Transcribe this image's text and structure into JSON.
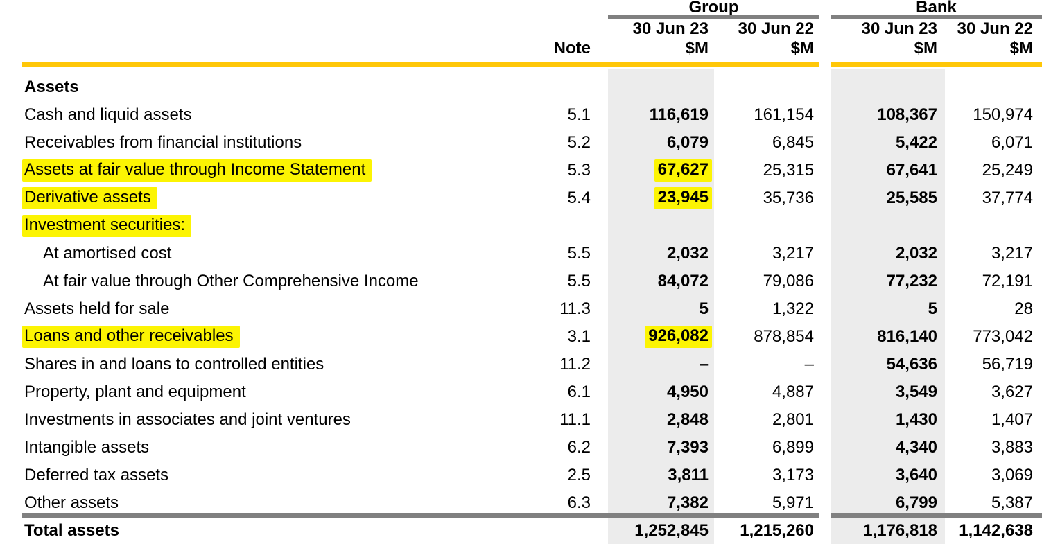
{
  "table": {
    "column_groups": [
      {
        "label": "Group"
      },
      {
        "label": "Bank"
      }
    ],
    "note_header": "Note",
    "date_headers": [
      "30 Jun 23",
      "30 Jun 22"
    ],
    "unit": "$M",
    "rows": [
      {
        "label": "Assets",
        "note": "",
        "g23": "",
        "g22": "",
        "b23": "",
        "b22": "",
        "style": "section"
      },
      {
        "label": "Cash and liquid assets",
        "note": "5.1",
        "g23": "116,619",
        "g22": "161,154",
        "b23": "108,367",
        "b22": "150,974",
        "style": ""
      },
      {
        "label": "Receivables from financial institutions",
        "note": "5.2",
        "g23": "6,079",
        "g22": "6,845",
        "b23": "5,422",
        "b22": "6,071",
        "style": ""
      },
      {
        "label": "Assets at fair value through Income Statement",
        "note": "5.3",
        "g23": "67,627",
        "g22": "25,315",
        "b23": "67,641",
        "b22": "25,249",
        "style": "hl hlv"
      },
      {
        "label": "Derivative assets",
        "note": "5.4",
        "g23": "23,945",
        "g22": "35,736",
        "b23": "25,585",
        "b22": "37,774",
        "style": "hl hlv"
      },
      {
        "label": "Investment securities:",
        "note": "",
        "g23": "",
        "g22": "",
        "b23": "",
        "b22": "",
        "style": "hl"
      },
      {
        "label": "At amortised cost",
        "note": "5.5",
        "g23": "2,032",
        "g22": "3,217",
        "b23": "2,032",
        "b22": "3,217",
        "style": "indent"
      },
      {
        "label": "At fair value through Other Comprehensive Income",
        "note": "5.5",
        "g23": "84,072",
        "g22": "79,086",
        "b23": "77,232",
        "b22": "72,191",
        "style": "indent"
      },
      {
        "label": "Assets held for sale",
        "note": "11.3",
        "g23": "5",
        "g22": "1,322",
        "b23": "5",
        "b22": "28",
        "style": ""
      },
      {
        "label": "Loans and other receivables",
        "note": "3.1",
        "g23": "926,082",
        "g22": "878,854",
        "b23": "816,140",
        "b22": "773,042",
        "style": "hl hlv"
      },
      {
        "label": "Shares in and loans to controlled entities",
        "note": "11.2",
        "g23": "–",
        "g22": "–",
        "b23": "54,636",
        "b22": "56,719",
        "style": ""
      },
      {
        "label": "Property, plant and equipment",
        "note": "6.1",
        "g23": "4,950",
        "g22": "4,887",
        "b23": "3,549",
        "b22": "3,627",
        "style": ""
      },
      {
        "label": "Investments in associates and joint ventures",
        "note": "11.1",
        "g23": "2,848",
        "g22": "2,801",
        "b23": "1,430",
        "b22": "1,407",
        "style": ""
      },
      {
        "label": "Intangible assets",
        "note": "6.2",
        "g23": "7,393",
        "g22": "6,899",
        "b23": "4,340",
        "b22": "3,883",
        "style": ""
      },
      {
        "label": "Deferred tax assets",
        "note": "2.5",
        "g23": "3,811",
        "g22": "3,173",
        "b23": "3,640",
        "b22": "3,069",
        "style": ""
      },
      {
        "label": "Other assets",
        "note": "6.3",
        "g23": "7,382",
        "g22": "5,971",
        "b23": "6,799",
        "b22": "5,387",
        "style": ""
      },
      {
        "label": "Total assets",
        "note": "",
        "g23": "1,252,845",
        "g22": "1,215,260",
        "b23": "1,176,818",
        "b22": "1,142,638",
        "style": "total"
      }
    ]
  },
  "colors": {
    "highlight": "#fcf403",
    "gold-rule": "#ffc708",
    "gray-bar": "#808080",
    "column-shade": "#ececec"
  }
}
